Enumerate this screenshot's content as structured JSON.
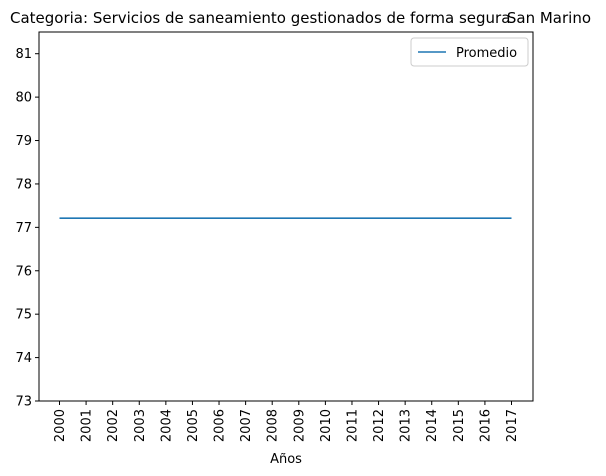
{
  "chart_data": {
    "type": "line",
    "title_left": "Categoria: Servicios de saneamiento gestionados de forma segura",
    "title_right": "San Marino",
    "xlabel": "Años",
    "ylabel": "",
    "x": [
      "2000",
      "2001",
      "2002",
      "2003",
      "2004",
      "2005",
      "2006",
      "2007",
      "2008",
      "2009",
      "2010",
      "2011",
      "2012",
      "2013",
      "2014",
      "2015",
      "2016",
      "2017"
    ],
    "series": [
      {
        "name": "Promedio",
        "color": "#1f77b4",
        "values": [
          77.21,
          77.21,
          77.21,
          77.21,
          77.21,
          77.21,
          77.21,
          77.21,
          77.21,
          77.21,
          77.21,
          77.21,
          77.21,
          77.21,
          77.21,
          77.21,
          77.21,
          77.21
        ]
      }
    ],
    "ylim": [
      73,
      81.5
    ],
    "yticks": [
      73,
      74,
      75,
      76,
      77,
      78,
      79,
      80,
      81
    ],
    "grid": false,
    "legend_position": "top-right"
  }
}
